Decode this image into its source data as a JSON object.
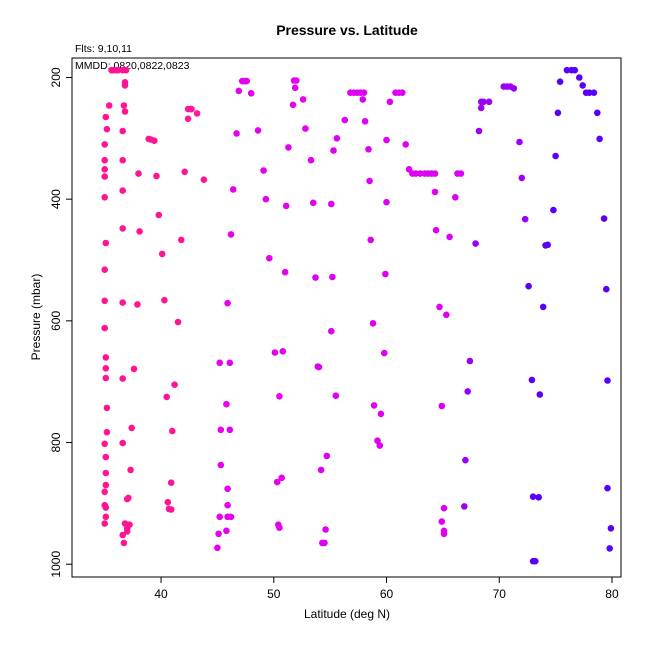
{
  "chart_data": {
    "type": "scatter",
    "title": "Pressure vs. Latitude",
    "subtitle": "Flts: 9,10,11",
    "annotation": "MMDD: 0820,0822,0823",
    "xlabel": "Latitude (deg N)",
    "ylabel": "Pressure (mbar)",
    "xlim": [
      32.1,
      80.8
    ],
    "ylim": [
      1021,
      168
    ],
    "y_inverted": true,
    "x_ticks": [
      "40",
      "50",
      "60",
      "70",
      "80"
    ],
    "y_ticks": [
      "200",
      "400",
      "600",
      "800",
      "1000"
    ],
    "grid": false,
    "legend": "none",
    "series": [
      {
        "color": "#ff1493",
        "points": [
          [
            35.6,
            188
          ],
          [
            35.8,
            188
          ],
          [
            36,
            188
          ],
          [
            36.2,
            188
          ],
          [
            36.6,
            188
          ],
          [
            36.9,
            188
          ],
          [
            36.8,
            208
          ],
          [
            36.8,
            213
          ],
          [
            35.4,
            246
          ],
          [
            36.7,
            246
          ],
          [
            36.8,
            256
          ],
          [
            35.1,
            265
          ],
          [
            35.2,
            285
          ],
          [
            36.6,
            288
          ],
          [
            35,
            310
          ],
          [
            38.9,
            301
          ],
          [
            39.1,
            302
          ],
          [
            39.4,
            304
          ],
          [
            36.6,
            336
          ],
          [
            35,
            336
          ],
          [
            35,
            351
          ],
          [
            35,
            363
          ],
          [
            38,
            358
          ],
          [
            39.6,
            362
          ],
          [
            42.1,
            355
          ],
          [
            43.8,
            368
          ],
          [
            36.6,
            386
          ],
          [
            35,
            397
          ],
          [
            39.8,
            426
          ],
          [
            36.6,
            448
          ],
          [
            38.1,
            453
          ],
          [
            41.8,
            467
          ],
          [
            35.1,
            472
          ],
          [
            40.1,
            490
          ],
          [
            35,
            516
          ],
          [
            36.6,
            570
          ],
          [
            37.9,
            573
          ],
          [
            40.3,
            566
          ],
          [
            41.5,
            602
          ],
          [
            35,
            567
          ],
          [
            35,
            612
          ],
          [
            35.1,
            660
          ],
          [
            35.1,
            678
          ],
          [
            37.6,
            679
          ],
          [
            35.1,
            694
          ],
          [
            36.6,
            695
          ],
          [
            41.2,
            705
          ],
          [
            40.5,
            725
          ],
          [
            35.2,
            743
          ],
          [
            37.4,
            776
          ],
          [
            41,
            781
          ],
          [
            35.2,
            783
          ],
          [
            36.6,
            801
          ],
          [
            35,
            802
          ],
          [
            35.1,
            824
          ],
          [
            37.3,
            845
          ],
          [
            35.1,
            850
          ],
          [
            35.1,
            870
          ],
          [
            40.9,
            866
          ],
          [
            35,
            881
          ],
          [
            37.1,
            891
          ],
          [
            37,
            893
          ],
          [
            40.6,
            898
          ],
          [
            35,
            903
          ],
          [
            35.1,
            907
          ],
          [
            40.7,
            909
          ],
          [
            40.9,
            910
          ],
          [
            35.1,
            922
          ],
          [
            35,
            933
          ],
          [
            36.8,
            933
          ],
          [
            37.2,
            935
          ],
          [
            37,
            941
          ],
          [
            37,
            946
          ],
          [
            36.6,
            952
          ],
          [
            36.7,
            965
          ]
        ]
      },
      {
        "color": "#ff1a9c",
        "points": [
          [
            42.4,
            252
          ],
          [
            42.6,
            252
          ],
          [
            42.7,
            252
          ],
          [
            43.2,
            259
          ],
          [
            42.4,
            268
          ]
        ]
      },
      {
        "color": "#e600f0",
        "points": [
          [
            47.2,
            206
          ],
          [
            47.4,
            206
          ],
          [
            47.6,
            206
          ],
          [
            46.9,
            222
          ],
          [
            48,
            226
          ],
          [
            51.8,
            205
          ],
          [
            52,
            205
          ],
          [
            51.9,
            217
          ],
          [
            52.6,
            236
          ],
          [
            51.7,
            245
          ],
          [
            52.8,
            284
          ],
          [
            48.6,
            287
          ],
          [
            46.7,
            292
          ],
          [
            51.3,
            315
          ],
          [
            53.3,
            336
          ],
          [
            49.1,
            353
          ],
          [
            46.4,
            384
          ],
          [
            49.3,
            400
          ],
          [
            51.1,
            411
          ],
          [
            53.5,
            406
          ],
          [
            46.2,
            458
          ],
          [
            49.6,
            497
          ],
          [
            51,
            520
          ],
          [
            45.9,
            571
          ],
          [
            50.1,
            652
          ],
          [
            50.8,
            650
          ],
          [
            45.2,
            669
          ],
          [
            46.1,
            669
          ],
          [
            50.5,
            724
          ],
          [
            45.3,
            779
          ],
          [
            46.1,
            779
          ],
          [
            45.8,
            737
          ],
          [
            45.3,
            837
          ],
          [
            45.9,
            876
          ],
          [
            50.3,
            865
          ],
          [
            50.7,
            858
          ],
          [
            45.9,
            903
          ],
          [
            45.2,
            922
          ],
          [
            45.9,
            922
          ],
          [
            46.2,
            922
          ],
          [
            50.4,
            935
          ],
          [
            50.5,
            940
          ],
          [
            45.8,
            945
          ],
          [
            45.1,
            950
          ],
          [
            45,
            973
          ]
        ]
      },
      {
        "color": "#dd00f2",
        "points": [
          [
            56.8,
            225
          ],
          [
            57.1,
            225
          ],
          [
            57.4,
            225
          ],
          [
            57.7,
            225
          ],
          [
            58,
            225
          ],
          [
            60.8,
            225
          ],
          [
            61.1,
            225
          ],
          [
            61.4,
            225
          ],
          [
            57.9,
            236
          ],
          [
            60.3,
            240
          ],
          [
            56.3,
            270
          ],
          [
            58.1,
            272
          ],
          [
            55.6,
            300
          ],
          [
            55.3,
            320
          ],
          [
            58.4,
            318
          ],
          [
            60,
            303
          ],
          [
            61.7,
            310
          ],
          [
            62,
            351
          ],
          [
            62.3,
            358
          ],
          [
            62.6,
            358
          ],
          [
            63,
            358
          ],
          [
            63.4,
            358
          ],
          [
            63.7,
            358
          ],
          [
            64,
            358
          ],
          [
            64.3,
            358
          ],
          [
            66.3,
            358
          ],
          [
            66.6,
            358
          ],
          [
            58.5,
            370
          ],
          [
            64.3,
            388
          ],
          [
            66.1,
            397
          ],
          [
            55.1,
            408
          ],
          [
            60,
            405
          ],
          [
            64.4,
            451
          ],
          [
            65.6,
            462
          ],
          [
            58.6,
            467
          ],
          [
            59.9,
            523
          ],
          [
            53.7,
            529
          ],
          [
            55.2,
            528
          ],
          [
            58.8,
            604
          ],
          [
            55.1,
            617
          ],
          [
            59.8,
            653
          ],
          [
            54,
            676
          ],
          [
            53.9,
            675
          ],
          [
            55.5,
            723
          ],
          [
            58.9,
            739
          ],
          [
            59.5,
            753
          ],
          [
            64.9,
            740
          ],
          [
            54.7,
            822
          ],
          [
            59.2,
            797
          ],
          [
            59.4,
            805
          ],
          [
            54.2,
            845
          ],
          [
            65.1,
            908
          ],
          [
            64.9,
            930
          ],
          [
            65.1,
            945
          ],
          [
            65.1,
            950
          ],
          [
            54.6,
            943
          ],
          [
            54.3,
            965
          ],
          [
            54.5,
            965
          ],
          [
            64.7,
            577
          ],
          [
            65.3,
            590
          ]
        ]
      },
      {
        "color": "#9c00f5",
        "points": [
          [
            68.6,
            240
          ],
          [
            68.4,
            250
          ],
          [
            68.4,
            240
          ],
          [
            69.1,
            240
          ],
          [
            70.4,
            215
          ],
          [
            70.7,
            215
          ],
          [
            71,
            215
          ],
          [
            71.3,
            218
          ],
          [
            68.2,
            288
          ],
          [
            71.8,
            306
          ],
          [
            72,
            365
          ],
          [
            67.9,
            473
          ],
          [
            72.3,
            433
          ],
          [
            67.4,
            666
          ],
          [
            67.2,
            716
          ],
          [
            67,
            829
          ],
          [
            66.9,
            905
          ]
        ]
      },
      {
        "color": "#5a00f8",
        "points": [
          [
            76,
            188
          ],
          [
            76.4,
            188
          ],
          [
            76.7,
            188
          ],
          [
            77.1,
            200
          ],
          [
            77.4,
            213
          ],
          [
            77.7,
            225
          ],
          [
            78,
            225
          ],
          [
            78.4,
            225
          ],
          [
            75.4,
            207
          ],
          [
            75.2,
            258
          ],
          [
            78.7,
            258
          ],
          [
            78.9,
            301
          ],
          [
            75,
            329
          ],
          [
            74.8,
            418
          ],
          [
            79.3,
            432
          ],
          [
            74.3,
            475
          ],
          [
            74.1,
            476
          ],
          [
            79.5,
            548
          ],
          [
            72.6,
            543
          ],
          [
            73.9,
            577
          ],
          [
            72.9,
            697
          ],
          [
            79.6,
            698
          ],
          [
            73.6,
            721
          ],
          [
            79.6,
            875
          ],
          [
            73,
            889
          ],
          [
            73.5,
            890
          ],
          [
            79.9,
            941
          ],
          [
            79.8,
            974
          ],
          [
            73,
            995
          ],
          [
            73.2,
            995
          ]
        ]
      }
    ]
  }
}
